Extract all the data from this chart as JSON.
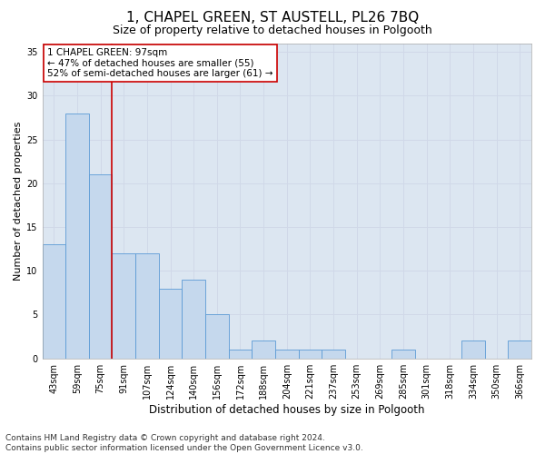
{
  "title1": "1, CHAPEL GREEN, ST AUSTELL, PL26 7BQ",
  "title2": "Size of property relative to detached houses in Polgooth",
  "xlabel": "Distribution of detached houses by size in Polgooth",
  "ylabel": "Number of detached properties",
  "categories": [
    "43sqm",
    "59sqm",
    "75sqm",
    "91sqm",
    "107sqm",
    "124sqm",
    "140sqm",
    "156sqm",
    "172sqm",
    "188sqm",
    "204sqm",
    "221sqm",
    "237sqm",
    "253sqm",
    "269sqm",
    "285sqm",
    "301sqm",
    "318sqm",
    "334sqm",
    "350sqm",
    "366sqm"
  ],
  "values": [
    13,
    28,
    21,
    12,
    12,
    8,
    9,
    5,
    1,
    2,
    1,
    1,
    1,
    0,
    0,
    1,
    0,
    0,
    2,
    0,
    2
  ],
  "bar_color": "#c5d8ed",
  "bar_edge_color": "#5b9bd5",
  "vline_x_idx": 2.5,
  "vline_color": "#cc0000",
  "annotation_text": "1 CHAPEL GREEN: 97sqm\n← 47% of detached houses are smaller (55)\n52% of semi-detached houses are larger (61) →",
  "annotation_box_color": "#ffffff",
  "annotation_box_edge": "#cc0000",
  "ylim": [
    0,
    36
  ],
  "yticks": [
    0,
    5,
    10,
    15,
    20,
    25,
    30,
    35
  ],
  "grid_color": "#d0d8e8",
  "bg_color": "#dce6f1",
  "footnote": "Contains HM Land Registry data © Crown copyright and database right 2024.\nContains public sector information licensed under the Open Government Licence v3.0.",
  "title1_fontsize": 11,
  "title2_fontsize": 9,
  "xlabel_fontsize": 8.5,
  "ylabel_fontsize": 8,
  "annotation_fontsize": 7.5,
  "tick_fontsize": 7,
  "footnote_fontsize": 6.5
}
